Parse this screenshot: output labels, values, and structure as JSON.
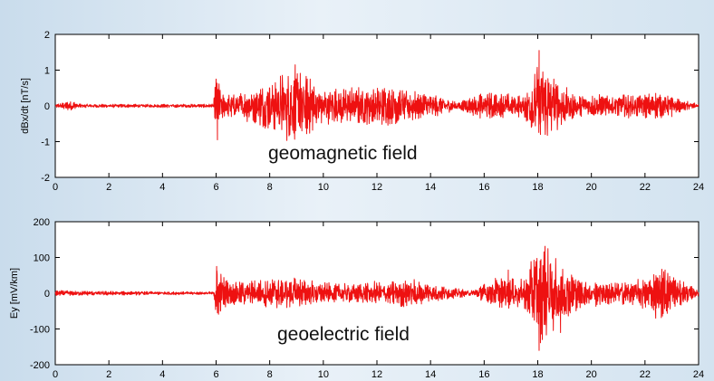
{
  "chart_data": [
    {
      "type": "line",
      "title": "",
      "xlabel": "",
      "ylabel": "dBx/dt [nT/s]",
      "annotation": "geomagnetic field",
      "xlim": [
        0,
        24
      ],
      "ylim": [
        -2,
        2
      ],
      "xticks": [
        0,
        2,
        4,
        6,
        8,
        10,
        12,
        14,
        16,
        18,
        20,
        22,
        24
      ],
      "yticks": [
        -2,
        -1,
        0,
        1,
        2
      ],
      "grid": false,
      "series_color": "#ee1111",
      "series": [
        {
          "envelope": [
            {
              "x": 0,
              "amp": 0.05
            },
            {
              "x": 0.6,
              "amp": 0.15
            },
            {
              "x": 1,
              "amp": 0.05
            },
            {
              "x": 5.9,
              "amp": 0.05
            },
            {
              "x": 6.0,
              "amp": 0.85
            },
            {
              "x": 6.3,
              "amp": 0.3
            },
            {
              "x": 7.5,
              "amp": 0.5
            },
            {
              "x": 8.9,
              "amp": 1.1
            },
            {
              "x": 10,
              "amp": 0.5
            },
            {
              "x": 12.9,
              "amp": 0.55
            },
            {
              "x": 14,
              "amp": 0.35
            },
            {
              "x": 15,
              "amp": 0.1
            },
            {
              "x": 16,
              "amp": 0.4
            },
            {
              "x": 17.5,
              "amp": 0.3
            },
            {
              "x": 18.0,
              "amp": 1.5
            },
            {
              "x": 18.5,
              "amp": 0.8
            },
            {
              "x": 19.5,
              "amp": 0.3
            },
            {
              "x": 22.5,
              "amp": 0.35
            },
            {
              "x": 23.2,
              "amp": 0.2
            },
            {
              "x": 24,
              "amp": 0.05
            }
          ],
          "spikes": [
            {
              "x": 6.0,
              "y": 0.75
            },
            {
              "x": 6.05,
              "y": -0.95
            },
            {
              "x": 8.95,
              "y": 1.15
            },
            {
              "x": 9.2,
              "y": -0.7
            },
            {
              "x": 18.05,
              "y": 1.55
            },
            {
              "x": 18.1,
              "y": -0.8
            },
            {
              "x": 18.6,
              "y": 0.75
            },
            {
              "x": 22.4,
              "y": 0.35
            },
            {
              "x": 23.0,
              "y": -0.3
            }
          ]
        }
      ]
    },
    {
      "type": "line",
      "title": "",
      "xlabel": "",
      "ylabel": "Ey [mV/km]",
      "annotation": "geoelectric field",
      "xlim": [
        0,
        24
      ],
      "ylim": [
        -200,
        200
      ],
      "xticks": [
        0,
        2,
        4,
        6,
        8,
        10,
        12,
        14,
        16,
        18,
        20,
        22,
        24
      ],
      "yticks": [
        -200,
        -100,
        0,
        100,
        200
      ],
      "grid": false,
      "series_color": "#ee1111",
      "series": [
        {
          "envelope": [
            {
              "x": 0,
              "amp": 8
            },
            {
              "x": 1,
              "amp": 6
            },
            {
              "x": 5.9,
              "amp": 4
            },
            {
              "x": 6.0,
              "amp": 75
            },
            {
              "x": 6.5,
              "amp": 30
            },
            {
              "x": 8.8,
              "amp": 45
            },
            {
              "x": 10.5,
              "amp": 25
            },
            {
              "x": 13.3,
              "amp": 40
            },
            {
              "x": 14.8,
              "amp": 15
            },
            {
              "x": 15.5,
              "amp": 8
            },
            {
              "x": 16.5,
              "amp": 45
            },
            {
              "x": 17.5,
              "amp": 40
            },
            {
              "x": 18.1,
              "amp": 150
            },
            {
              "x": 18.8,
              "amp": 90
            },
            {
              "x": 19.6,
              "amp": 40
            },
            {
              "x": 21.5,
              "amp": 30
            },
            {
              "x": 22.6,
              "amp": 70
            },
            {
              "x": 23.3,
              "amp": 40
            },
            {
              "x": 24,
              "amp": 8
            }
          ],
          "spikes": [
            {
              "x": 6.02,
              "y": 75
            },
            {
              "x": 6.05,
              "y": -55
            },
            {
              "x": 16.9,
              "y": 65
            },
            {
              "x": 18.05,
              "y": -160
            },
            {
              "x": 18.2,
              "y": 60
            },
            {
              "x": 18.85,
              "y": -110
            },
            {
              "x": 22.4,
              "y": -70
            },
            {
              "x": 22.75,
              "y": 65
            }
          ]
        }
      ]
    }
  ]
}
